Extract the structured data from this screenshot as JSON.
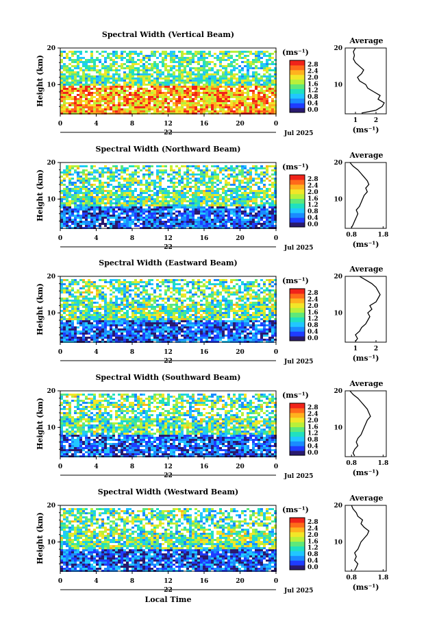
{
  "chart_data": {
    "type": "heatmap",
    "xlabel": "Local Time",
    "date_label": "Jul 2025",
    "day_label": "22",
    "x_ticks": [
      "0",
      "4",
      "8",
      "12",
      "16",
      "20",
      "0"
    ],
    "x_range": [
      0,
      24
    ],
    "y_range": [
      2,
      20
    ],
    "y_ticks": [
      "20",
      "10"
    ],
    "ylabel": "Height (km)",
    "colorbar": {
      "unit_label": "(ms⁻¹)",
      "ticks": [
        "2.8",
        "2.4",
        "2.0",
        "1.6",
        "1.2",
        "0.8",
        "0.4",
        "0.0"
      ],
      "range": [
        0.0,
        3.0
      ],
      "colors": [
        "#2a1a6e",
        "#1f3cff",
        "#1a8bff",
        "#21c7ff",
        "#20e0c0",
        "#5ee87a",
        "#b8f03a",
        "#f2e628",
        "#ffb21e",
        "#ff6a1a",
        "#f0231a"
      ]
    },
    "panels": [
      {
        "title": "Spectral Width (Vertical Beam)",
        "profile": {
          "title": "Average",
          "xlabel": "(ms⁻¹)",
          "x_ticks": [
            "1",
            "2"
          ],
          "x_range": [
            0.5,
            2.5
          ],
          "points": [
            [
              1.3,
              2.2
            ],
            [
              2.0,
              3
            ],
            [
              2.3,
              4
            ],
            [
              2.4,
              5
            ],
            [
              2.1,
              6
            ],
            [
              2.2,
              7
            ],
            [
              1.9,
              8
            ],
            [
              1.6,
              9
            ],
            [
              1.5,
              10
            ],
            [
              1.2,
              11
            ],
            [
              1.1,
              12
            ],
            [
              1.3,
              13
            ],
            [
              1.4,
              14
            ],
            [
              1.2,
              15
            ],
            [
              1.0,
              16
            ],
            [
              0.9,
              17
            ],
            [
              0.95,
              18
            ],
            [
              0.9,
              19
            ],
            [
              1.0,
              20
            ]
          ]
        }
      },
      {
        "title": "Spectral Width (Northward Beam)",
        "profile": {
          "title": "Average",
          "xlabel": "(ms⁻¹)",
          "x_ticks": [
            "0.8",
            "1.8"
          ],
          "x_range": [
            0.6,
            1.9
          ],
          "points": [
            [
              0.8,
              2.2
            ],
            [
              0.85,
              3
            ],
            [
              0.9,
              4
            ],
            [
              0.95,
              5
            ],
            [
              1.0,
              6
            ],
            [
              0.95,
              7
            ],
            [
              1.05,
              8
            ],
            [
              1.1,
              9
            ],
            [
              1.15,
              10
            ],
            [
              1.2,
              11
            ],
            [
              1.3,
              12
            ],
            [
              1.25,
              13
            ],
            [
              1.35,
              14
            ],
            [
              1.3,
              15
            ],
            [
              1.2,
              16
            ],
            [
              1.1,
              17
            ],
            [
              1.0,
              18
            ],
            [
              0.85,
              19
            ],
            [
              0.75,
              20
            ]
          ]
        }
      },
      {
        "title": "Spectral Width (Eastward Beam)",
        "profile": {
          "title": "Average",
          "xlabel": "(ms⁻¹)",
          "x_ticks": [
            "1",
            "2"
          ],
          "x_range": [
            0.5,
            2.5
          ],
          "points": [
            [
              1.0,
              2.2
            ],
            [
              1.1,
              3
            ],
            [
              1.0,
              4
            ],
            [
              1.2,
              5
            ],
            [
              1.3,
              6
            ],
            [
              1.5,
              7
            ],
            [
              1.6,
              8
            ],
            [
              1.7,
              9
            ],
            [
              1.6,
              10
            ],
            [
              1.8,
              11
            ],
            [
              1.7,
              12
            ],
            [
              2.0,
              13
            ],
            [
              2.1,
              14
            ],
            [
              2.2,
              15
            ],
            [
              2.1,
              16
            ],
            [
              2.0,
              17
            ],
            [
              1.8,
              18
            ],
            [
              1.5,
              19
            ],
            [
              1.2,
              20
            ]
          ]
        }
      },
      {
        "title": "Spectral Width (Southward Beam)",
        "profile": {
          "title": "Average",
          "xlabel": "(ms⁻¹)",
          "x_ticks": [
            "0.8",
            "1.8"
          ],
          "x_range": [
            0.6,
            1.9
          ],
          "points": [
            [
              0.9,
              2.2
            ],
            [
              0.85,
              3
            ],
            [
              0.9,
              4
            ],
            [
              1.0,
              5
            ],
            [
              0.95,
              6
            ],
            [
              1.0,
              7
            ],
            [
              1.1,
              8
            ],
            [
              1.15,
              9
            ],
            [
              1.2,
              10
            ],
            [
              1.25,
              11
            ],
            [
              1.3,
              12
            ],
            [
              1.4,
              13
            ],
            [
              1.35,
              14
            ],
            [
              1.3,
              15
            ],
            [
              1.2,
              16
            ],
            [
              1.1,
              17
            ],
            [
              1.0,
              18
            ],
            [
              0.85,
              19
            ],
            [
              0.75,
              20
            ]
          ]
        }
      },
      {
        "title": "Spectral Width (Westward Beam)",
        "profile": {
          "title": "Average",
          "xlabel": "(ms⁻¹)",
          "x_ticks": [
            "0.8",
            "1.8"
          ],
          "x_range": [
            0.6,
            1.9
          ],
          "points": [
            [
              0.9,
              2.2
            ],
            [
              0.95,
              3
            ],
            [
              1.0,
              4
            ],
            [
              0.9,
              5
            ],
            [
              0.95,
              6
            ],
            [
              0.9,
              7
            ],
            [
              1.0,
              8
            ],
            [
              1.05,
              9
            ],
            [
              1.1,
              10
            ],
            [
              1.2,
              11
            ],
            [
              1.3,
              12
            ],
            [
              1.35,
              13
            ],
            [
              1.2,
              14
            ],
            [
              1.1,
              15
            ],
            [
              1.15,
              16
            ],
            [
              1.0,
              17
            ],
            [
              0.95,
              18
            ],
            [
              0.85,
              19
            ],
            [
              0.8,
              20
            ]
          ]
        }
      }
    ]
  }
}
